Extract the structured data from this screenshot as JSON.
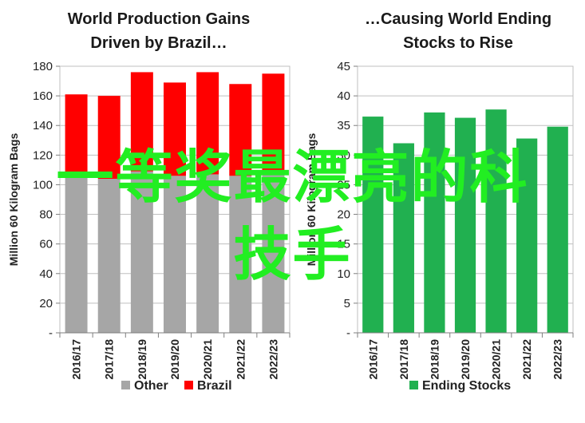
{
  "chart_data": [
    {
      "type": "bar",
      "stacked": true,
      "title_lines": [
        "World Production Gains",
        "Driven by Brazil…"
      ],
      "ylabel": "Million 60 Kilogram Bags",
      "ylim": [
        0,
        180
      ],
      "yticks": [
        0,
        20,
        40,
        60,
        80,
        100,
        120,
        140,
        160,
        180
      ],
      "ytick_labels": [
        "-",
        "20",
        "40",
        "60",
        "80",
        "100",
        "120",
        "140",
        "160",
        "180"
      ],
      "grid": true,
      "legend_position": "bottom",
      "categories": [
        "2016/17",
        "2017/18",
        "2018/19",
        "2019/20",
        "2020/21",
        "2021/22",
        "2022/23"
      ],
      "series": [
        {
          "name": "Other",
          "color": "#a6a6a6",
          "values": [
            105,
            104,
            109,
            106,
            107,
            106,
            107
          ]
        },
        {
          "name": "Brazil",
          "color": "#ff0000",
          "values": [
            56,
            56,
            67,
            63,
            69,
            62,
            68
          ]
        }
      ]
    },
    {
      "type": "bar",
      "title_lines": [
        "…Causing World Ending",
        "Stocks to Rise"
      ],
      "ylabel": "Million 60 Kilogram Bags",
      "ylim": [
        0,
        45
      ],
      "yticks": [
        0,
        5,
        10,
        15,
        20,
        25,
        30,
        35,
        40,
        45
      ],
      "ytick_labels": [
        "-",
        "5",
        "10",
        "15",
        "20",
        "25",
        "30",
        "35",
        "40",
        "45"
      ],
      "grid": true,
      "legend_position": "bottom",
      "categories": [
        "2016/17",
        "2017/18",
        "2018/19",
        "2019/20",
        "2020/21",
        "2021/22",
        "2022/23"
      ],
      "series": [
        {
          "name": "Ending Stocks",
          "color": "#21b050",
          "values": [
            36.5,
            32.0,
            37.2,
            36.3,
            37.7,
            32.8,
            34.8
          ]
        }
      ]
    }
  ],
  "overlay": {
    "line1": "一等奖最漂亮的科",
    "line2": "技手",
    "color": "#22ee22"
  }
}
